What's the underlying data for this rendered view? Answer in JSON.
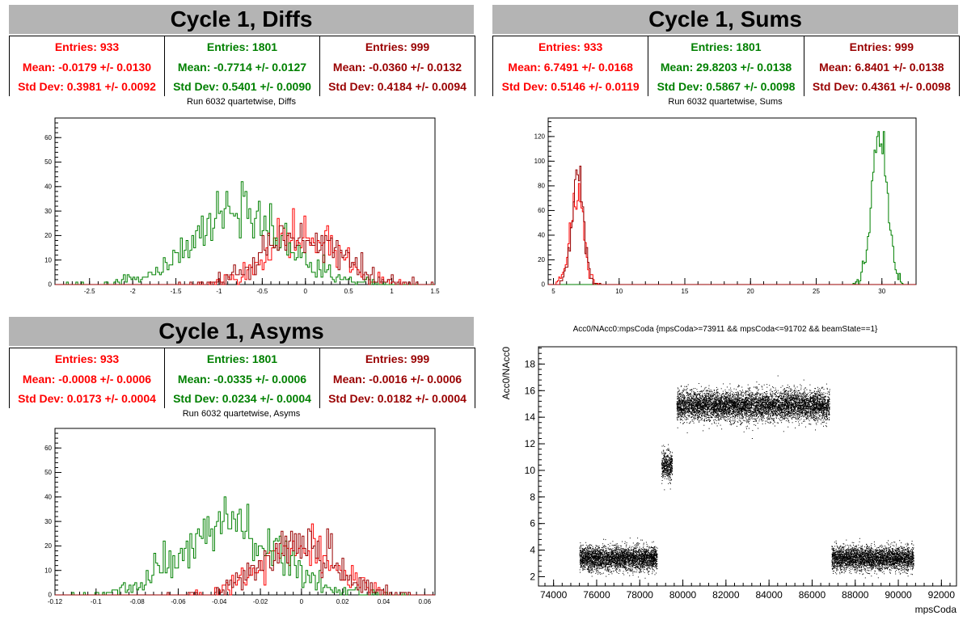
{
  "colors": {
    "red": "#ff0000",
    "green": "#008000",
    "darkred": "#990000"
  },
  "panels": [
    {
      "title": "Cycle 1, Diffs",
      "stats": [
        {
          "entries": "Entries: 933",
          "mean": "Mean: -0.0179 +/- 0.0130",
          "std": "Std Dev: 0.3981 +/- 0.0092",
          "color": "#ff0000"
        },
        {
          "entries": "Entries: 1801",
          "mean": "Mean: -0.7714 +/- 0.0127",
          "std": "Std Dev: 0.5401 +/- 0.0090",
          "color": "#008000"
        },
        {
          "entries": "Entries: 999",
          "mean": "Mean: -0.0360 +/- 0.0132",
          "std": "Std Dev: 0.4184 +/- 0.0094",
          "color": "#990000"
        }
      ],
      "subtitle": "Run 6032 quartetwise, Diffs"
    },
    {
      "title": "Cycle 1, Sums",
      "stats": [
        {
          "entries": "Entries: 933",
          "mean": "Mean: 6.7491 +/- 0.0168",
          "std": "Std Dev: 0.5146 +/- 0.0119",
          "color": "#ff0000"
        },
        {
          "entries": "Entries: 1801",
          "mean": "Mean: 29.8203 +/- 0.0138",
          "std": "Std Dev: 0.5867 +/- 0.0098",
          "color": "#008000"
        },
        {
          "entries": "Entries: 999",
          "mean": "Mean: 6.8401 +/- 0.0138",
          "std": "Std Dev: 0.4361 +/- 0.0098",
          "color": "#990000"
        }
      ],
      "subtitle": "Run 6032 quartetwise, Sums"
    },
    {
      "title": "Cycle 1, Asyms",
      "stats": [
        {
          "entries": "Entries: 933",
          "mean": "Mean: -0.0008 +/- 0.0006",
          "std": "Std Dev: 0.0173 +/- 0.0004",
          "color": "#ff0000"
        },
        {
          "entries": "Entries: 1801",
          "mean": "Mean: -0.0335 +/- 0.0006",
          "std": "Std Dev: 0.0234 +/- 0.0004",
          "color": "#008000"
        },
        {
          "entries": "Entries: 999",
          "mean": "Mean: -0.0016 +/- 0.0006",
          "std": "Std Dev: 0.0182 +/- 0.0004",
          "color": "#990000"
        }
      ],
      "subtitle": "Run 6032 quartetwise, Asyms"
    }
  ],
  "chart_data": [
    {
      "type": "histogram",
      "title": "Run 6032 quartetwise, Diffs",
      "xlim": [
        -2.9,
        1.5
      ],
      "ylim": [
        0,
        68
      ],
      "xticks": [
        -2.5,
        -2,
        -1.5,
        -1,
        -0.5,
        0,
        0.5,
        1,
        1.5
      ],
      "xticklabels": [
        "-2.5",
        "-2",
        "-1.5",
        "-1",
        "-0.5",
        "0",
        "0.5",
        "1",
        "1.5"
      ],
      "yticks": [
        0,
        10,
        20,
        30,
        40,
        50,
        60
      ],
      "yticklabels": [
        "0",
        "10",
        "20",
        "30",
        "40",
        "50",
        "60"
      ],
      "series": [
        {
          "color": "#ff0000",
          "entries": 933,
          "mean": -0.0179,
          "std": 0.3981
        },
        {
          "color": "#008000",
          "entries": 1801,
          "mean": -0.7714,
          "std": 0.5401
        },
        {
          "color": "#990000",
          "entries": 999,
          "mean": -0.036,
          "std": 0.4184
        }
      ]
    },
    {
      "type": "histogram",
      "title": "Run 6032 quartetwise, Sums",
      "xlim": [
        4.6,
        32.6
      ],
      "ylim": [
        0,
        135
      ],
      "xticks": [
        5,
        10,
        15,
        20,
        25,
        30
      ],
      "xticklabels": [
        "5",
        "10",
        "15",
        "20",
        "25",
        "30"
      ],
      "yticks": [
        0,
        20,
        40,
        60,
        80,
        100,
        120
      ],
      "yticklabels": [
        "0",
        "20",
        "40",
        "60",
        "80",
        "100",
        "120"
      ],
      "series": [
        {
          "color": "#ff0000",
          "entries": 933,
          "mean": 6.7491,
          "std": 0.5146
        },
        {
          "color": "#008000",
          "entries": 1801,
          "mean": 29.8203,
          "std": 0.5867
        },
        {
          "color": "#990000",
          "entries": 999,
          "mean": 6.8401,
          "std": 0.4361
        }
      ]
    },
    {
      "type": "histogram",
      "title": "Run 6032 quartetwise, Asyms",
      "xlim": [
        -0.12,
        0.065
      ],
      "ylim": [
        0,
        68
      ],
      "xticks": [
        -0.12,
        -0.1,
        -0.08,
        -0.06,
        -0.04,
        -0.02,
        0,
        0.02,
        0.04,
        0.06
      ],
      "xticklabels": [
        "-0.12",
        "-0.1",
        "-0.08",
        "-0.06",
        "-0.04",
        "-0.02",
        "0",
        "0.02",
        "0.04",
        "0.06"
      ],
      "yticks": [
        0,
        10,
        20,
        30,
        40,
        50,
        60
      ],
      "yticklabels": [
        "0",
        "10",
        "20",
        "30",
        "40",
        "50",
        "60"
      ],
      "series": [
        {
          "color": "#ff0000",
          "entries": 933,
          "mean": -0.0008,
          "std": 0.0173
        },
        {
          "color": "#008000",
          "entries": 1801,
          "mean": -0.0335,
          "std": 0.0234
        },
        {
          "color": "#990000",
          "entries": 999,
          "mean": -0.0016,
          "std": 0.0182
        }
      ]
    },
    {
      "type": "scatter",
      "title": "Acc0/NAcc0:mpsCoda {mpsCoda>=73911 && mpsCoda<=91702 && beamState==1}",
      "xlabel": "mpsCoda",
      "ylabel": "Acc0/NAcc0",
      "xlim": [
        73300,
        92700
      ],
      "ylim": [
        1.3,
        19.3
      ],
      "xticks": [
        74000,
        76000,
        78000,
        80000,
        82000,
        84000,
        86000,
        88000,
        90000,
        92000
      ],
      "xticklabels": [
        "74000",
        "76000",
        "78000",
        "80000",
        "82000",
        "84000",
        "86000",
        "88000",
        "90000",
        "92000"
      ],
      "yticks": [
        2,
        4,
        6,
        8,
        10,
        12,
        14,
        16,
        18
      ],
      "yticklabels": [
        "2",
        "4",
        "6",
        "8",
        "10",
        "12",
        "14",
        "16",
        "18"
      ],
      "clusters": [
        {
          "x_range": [
            75200,
            78800
          ],
          "y_center": 3.4,
          "y_spread": 0.45
        },
        {
          "x_range": [
            79000,
            79500
          ],
          "y_center": 10.4,
          "y_spread": 0.55
        },
        {
          "x_range": [
            79700,
            86800
          ],
          "y_center": 14.9,
          "y_spread": 0.55
        },
        {
          "x_range": [
            86900,
            90700
          ],
          "y_center": 3.4,
          "y_spread": 0.45
        }
      ],
      "color": "#000000"
    }
  ]
}
